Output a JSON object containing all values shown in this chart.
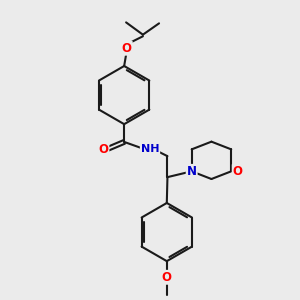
{
  "bg_color": "#ebebeb",
  "bond_color": "#1a1a1a",
  "bond_width": 1.5,
  "atom_colors": {
    "O": "#ff0000",
    "N": "#0000cc",
    "C": "#1a1a1a"
  },
  "font_size_atom": 8.5,
  "dbl_sep": 0.07
}
